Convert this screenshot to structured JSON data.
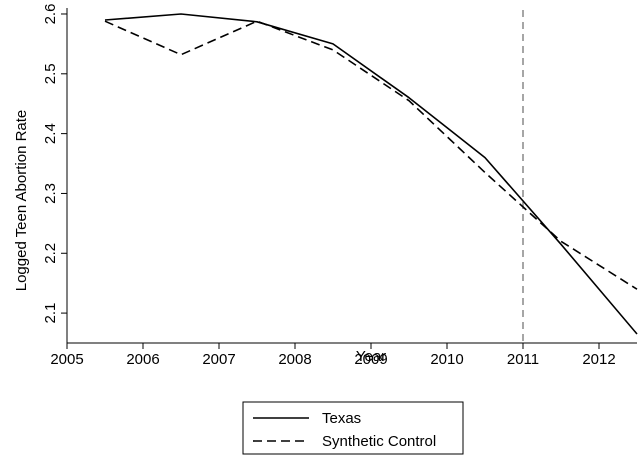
{
  "chart_data": {
    "type": "line",
    "title": "",
    "xlabel": "Year",
    "ylabel": "Logged Teen Abortion Rate",
    "xlim": [
      2005,
      2012.5
    ],
    "ylim": [
      2.05,
      2.61
    ],
    "xticks": [
      2005,
      2006,
      2007,
      2008,
      2009,
      2010,
      2011,
      2012
    ],
    "yticks": [
      2.1,
      2.2,
      2.3,
      2.4,
      2.5,
      2.6
    ],
    "grid": false,
    "legend_position": "bottom-center",
    "reference_line": {
      "x": 2011,
      "style": "dashed",
      "color": "#888888"
    },
    "series": [
      {
        "name": "Texas",
        "style": "solid",
        "color": "#000000",
        "x": [
          2005.5,
          2006.5,
          2007.5,
          2008.5,
          2009.5,
          2010.5,
          2011.5,
          2012.5
        ],
        "y": [
          2.59,
          2.6,
          2.587,
          2.55,
          2.46,
          2.36,
          2.215,
          2.065
        ]
      },
      {
        "name": "Synthetic Control",
        "style": "dashed",
        "color": "#000000",
        "x": [
          2005.5,
          2006.5,
          2007.5,
          2008.5,
          2009.5,
          2010.5,
          2011.5,
          2012.5
        ],
        "y": [
          2.588,
          2.532,
          2.588,
          2.54,
          2.455,
          2.335,
          2.22,
          2.14
        ]
      }
    ]
  }
}
